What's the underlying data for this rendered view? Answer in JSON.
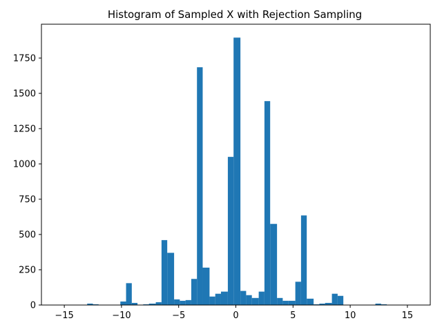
{
  "chart_data": {
    "type": "bar",
    "title": "Histogram of Sampled X with Rejection Sampling",
    "xlabel": "",
    "ylabel": "",
    "xlim": [
      -17.0,
      17.0
    ],
    "ylim": [
      0,
      1990
    ],
    "grid": false,
    "legend": "none",
    "bar_color": "#1f77b4",
    "x_ticks": [
      -15,
      -10,
      -5,
      0,
      5,
      10,
      15
    ],
    "x_tick_labels": [
      "−15",
      "−10",
      "−5",
      "0",
      "5",
      "10",
      "15"
    ],
    "y_ticks": [
      0,
      250,
      500,
      750,
      1000,
      1250,
      1500,
      1750
    ],
    "y_tick_labels": [
      "0",
      "250",
      "500",
      "750",
      "1000",
      "1250",
      "1500",
      "1750"
    ],
    "bins": [
      {
        "x0": -13.0,
        "x1": -12.5,
        "count": 10
      },
      {
        "x0": -12.5,
        "x1": -12.0,
        "count": 5
      },
      {
        "x0": -10.1,
        "x1": -9.6,
        "count": 25
      },
      {
        "x0": -9.6,
        "x1": -9.1,
        "count": 155
      },
      {
        "x0": -9.1,
        "x1": -8.6,
        "count": 15
      },
      {
        "x0": -8.1,
        "x1": -7.6,
        "count": 5
      },
      {
        "x0": -7.6,
        "x1": -7.0,
        "count": 10
      },
      {
        "x0": -7.0,
        "x1": -6.5,
        "count": 20
      },
      {
        "x0": -6.5,
        "x1": -6.0,
        "count": 460
      },
      {
        "x0": -6.0,
        "x1": -5.4,
        "count": 370
      },
      {
        "x0": -5.4,
        "x1": -4.9,
        "count": 40
      },
      {
        "x0": -4.9,
        "x1": -4.4,
        "count": 30
      },
      {
        "x0": -4.4,
        "x1": -3.9,
        "count": 35
      },
      {
        "x0": -3.9,
        "x1": -3.4,
        "count": 185
      },
      {
        "x0": -3.4,
        "x1": -2.9,
        "count": 1685
      },
      {
        "x0": -2.9,
        "x1": -2.3,
        "count": 265
      },
      {
        "x0": -2.3,
        "x1": -1.8,
        "count": 60
      },
      {
        "x0": -1.8,
        "x1": -1.3,
        "count": 80
      },
      {
        "x0": -1.3,
        "x1": -0.7,
        "count": 95
      },
      {
        "x0": -0.7,
        "x1": -0.2,
        "count": 1050
      },
      {
        "x0": -0.2,
        "x1": 0.4,
        "count": 1895
      },
      {
        "x0": 0.4,
        "x1": 0.9,
        "count": 100
      },
      {
        "x0": 0.9,
        "x1": 1.4,
        "count": 70
      },
      {
        "x0": 1.4,
        "x1": 2.0,
        "count": 50
      },
      {
        "x0": 2.0,
        "x1": 2.5,
        "count": 95
      },
      {
        "x0": 2.5,
        "x1": 3.0,
        "count": 1445
      },
      {
        "x0": 3.0,
        "x1": 3.6,
        "count": 575
      },
      {
        "x0": 3.6,
        "x1": 4.1,
        "count": 50
      },
      {
        "x0": 4.1,
        "x1": 4.6,
        "count": 30
      },
      {
        "x0": 4.6,
        "x1": 5.2,
        "count": 30
      },
      {
        "x0": 5.2,
        "x1": 5.7,
        "count": 165
      },
      {
        "x0": 5.7,
        "x1": 6.2,
        "count": 635
      },
      {
        "x0": 6.2,
        "x1": 6.8,
        "count": 45
      },
      {
        "x0": 6.8,
        "x1": 7.3,
        "count": 5
      },
      {
        "x0": 7.3,
        "x1": 7.8,
        "count": 10
      },
      {
        "x0": 7.8,
        "x1": 8.4,
        "count": 15
      },
      {
        "x0": 8.4,
        "x1": 8.9,
        "count": 80
      },
      {
        "x0": 8.9,
        "x1": 9.4,
        "count": 65
      },
      {
        "x0": 12.2,
        "x1": 12.7,
        "count": 10
      },
      {
        "x0": 12.7,
        "x1": 13.2,
        "count": 5
      }
    ]
  }
}
